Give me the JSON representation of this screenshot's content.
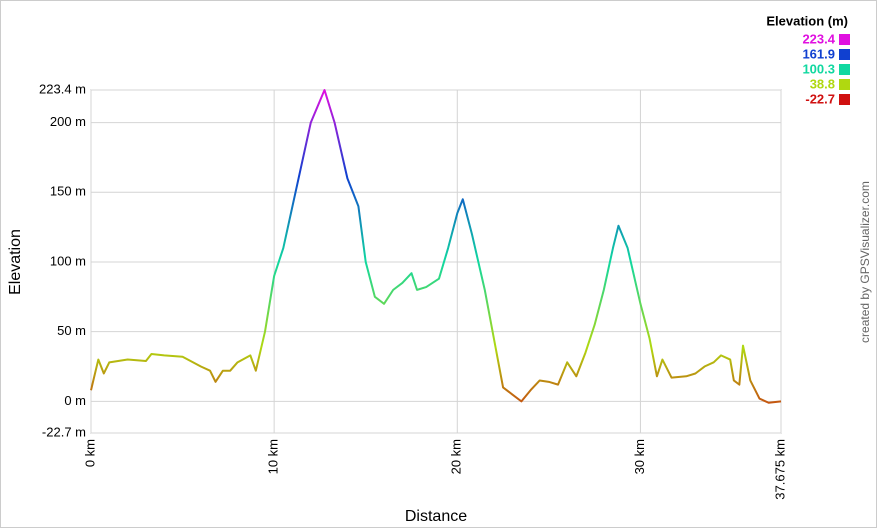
{
  "chart_data": {
    "type": "line",
    "x_label": "Distance",
    "y_label": "Elevation",
    "credit": "created by GPSVisualizer.com",
    "legend_title": "Elevation (m)",
    "color_scale": [
      {
        "value": 223.4,
        "color": "#e010e0"
      },
      {
        "value": 161.9,
        "color": "#1040d0"
      },
      {
        "value": 100.3,
        "color": "#10d8a0"
      },
      {
        "value": 38.8,
        "color": "#b0d810"
      },
      {
        "value": -22.7,
        "color": "#d01010"
      }
    ],
    "xlim": [
      0,
      37.675
    ],
    "xticks": [
      {
        "value": 0,
        "label": "0 km"
      },
      {
        "value": 10,
        "label": "10 km"
      },
      {
        "value": 20,
        "label": "20 km"
      },
      {
        "value": 30,
        "label": "30 km"
      },
      {
        "value": 37.675,
        "label": "37.675 km"
      }
    ],
    "ylim": [
      -22.7,
      223.4
    ],
    "yticks": [
      {
        "value": -22.7,
        "label": "-22.7 m"
      },
      {
        "value": 0,
        "label": "0 m"
      },
      {
        "value": 50,
        "label": "50 m"
      },
      {
        "value": 100,
        "label": "100 m"
      },
      {
        "value": 150,
        "label": "150 m"
      },
      {
        "value": 200,
        "label": "200 m"
      },
      {
        "value": 223.4,
        "label": "223.4 m"
      }
    ],
    "grid": true,
    "x": [
      0,
      0.4,
      0.7,
      1,
      2,
      3,
      3.3,
      4,
      5,
      6,
      6.5,
      6.8,
      7.2,
      7.6,
      8,
      8.7,
      9,
      9.5,
      10,
      10.5,
      11,
      11.5,
      12,
      12.75,
      13.3,
      14,
      14.6,
      15,
      15.5,
      16,
      16.5,
      17,
      17.5,
      17.8,
      18.3,
      19,
      19.5,
      20,
      20.3,
      20.8,
      21.5,
      22,
      22.5,
      23,
      23.5,
      24,
      24.5,
      25,
      25.5,
      26,
      26.5,
      27,
      27.5,
      28,
      28.5,
      28.8,
      29.3,
      30,
      30.5,
      30.9,
      31.2,
      31.7,
      32.5,
      33,
      33.5,
      34,
      34.4,
      34.9,
      35.1,
      35.4,
      35.6,
      36,
      36.5,
      37,
      37.675
    ],
    "series": [
      {
        "name": "Elevation",
        "values": [
          8,
          30,
          20,
          28,
          30,
          29,
          34,
          33,
          32,
          25,
          22,
          14,
          22,
          22,
          28,
          33,
          22,
          50,
          90,
          110,
          140,
          170,
          200,
          223.4,
          200,
          160,
          140,
          100,
          75,
          70,
          80,
          85,
          92,
          80,
          82,
          88,
          110,
          135,
          145,
          120,
          80,
          45,
          10,
          5,
          0,
          8,
          15,
          14,
          12,
          28,
          18,
          35,
          55,
          80,
          110,
          126,
          110,
          70,
          45,
          18,
          30,
          17,
          18,
          20,
          25,
          28,
          33,
          30,
          15,
          12,
          40,
          15,
          2,
          -1,
          0
        ]
      }
    ]
  }
}
